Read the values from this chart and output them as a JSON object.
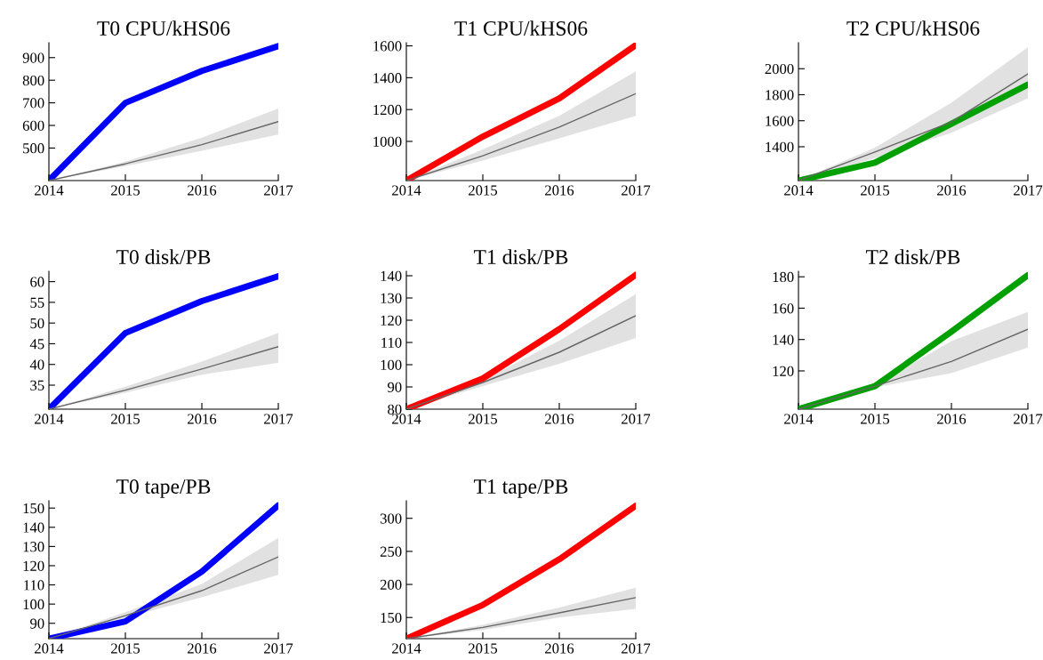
{
  "chart_data": [
    {
      "type": "line",
      "title": "T0 CPU/kHS06",
      "x": [
        2014,
        2015,
        2016,
        2017
      ],
      "xlim": [
        2014,
        2017
      ],
      "xticks": [
        2014,
        2015,
        2016,
        2017
      ],
      "ylim": [
        356,
        966
      ],
      "yticks": [
        500,
        600,
        700,
        800,
        900
      ],
      "grid": false,
      "series": [
        {
          "color": "#0000ff",
          "values": [
            356,
            700,
            841,
            951
          ]
        },
        {
          "color": "#666666",
          "values": [
            356,
            430,
            515,
            617
          ],
          "lower": [
            356,
            420,
            488,
            560
          ],
          "upper": [
            356,
            440,
            546,
            675
          ]
        }
      ]
    },
    {
      "type": "line",
      "title": "T1 CPU/kHS06",
      "x": [
        2014,
        2015,
        2016,
        2017
      ],
      "xlim": [
        2014,
        2017
      ],
      "xticks": [
        2014,
        2015,
        2016,
        2017
      ],
      "ylim": [
        754,
        1620
      ],
      "yticks": [
        1000,
        1200,
        1400,
        1600
      ],
      "grid": false,
      "series": [
        {
          "color": "#ff0000",
          "values": [
            754,
            1030,
            1270,
            1605
          ]
        },
        {
          "color": "#666666",
          "values": [
            754,
            910,
            1090,
            1300
          ],
          "lower": [
            754,
            880,
            1020,
            1160
          ],
          "upper": [
            754,
            950,
            1160,
            1440
          ]
        }
      ]
    },
    {
      "type": "line",
      "title": "T2 CPU/kHS06",
      "x": [
        2014,
        2015,
        2016,
        2017
      ],
      "xlim": [
        2014,
        2017
      ],
      "xticks": [
        2014,
        2015,
        2016,
        2017
      ],
      "ylim": [
        1140,
        2200
      ],
      "yticks": [
        1400,
        1600,
        1800,
        2000
      ],
      "grid": false,
      "series": [
        {
          "color": "#00a000",
          "values": [
            1140,
            1278,
            1577,
            1878
          ]
        },
        {
          "color": "#666666",
          "values": [
            1140,
            1360,
            1590,
            1960
          ],
          "lower": [
            1140,
            1313,
            1508,
            1772
          ],
          "upper": [
            1140,
            1393,
            1738,
            2165
          ]
        }
      ]
    },
    {
      "type": "line",
      "title": "T0 disk/PB",
      "x": [
        2014,
        2015,
        2016,
        2017
      ],
      "xlim": [
        2014,
        2017
      ],
      "xticks": [
        2014,
        2015,
        2016,
        2017
      ],
      "ylim": [
        29.2,
        62.5
      ],
      "yticks": [
        35,
        40,
        45,
        50,
        55,
        60
      ],
      "grid": false,
      "series": [
        {
          "color": "#0000ff",
          "values": [
            29.2,
            47.6,
            55.3,
            61.3
          ]
        },
        {
          "color": "#666666",
          "values": [
            29.2,
            33.8,
            38.9,
            44.3
          ],
          "lower": [
            29.2,
            33.2,
            37.5,
            40.4
          ],
          "upper": [
            29.2,
            34.6,
            40.7,
            47.6
          ]
        }
      ]
    },
    {
      "type": "line",
      "title": "T1 disk/PB",
      "x": [
        2014,
        2015,
        2016,
        2017
      ],
      "xlim": [
        2014,
        2017
      ],
      "xticks": [
        2014,
        2015,
        2016,
        2017
      ],
      "ylim": [
        80,
        142
      ],
      "yticks": [
        80,
        90,
        100,
        110,
        120,
        130,
        140
      ],
      "grid": false,
      "series": [
        {
          "color": "#ff0000",
          "values": [
            80,
            93.8,
            116,
            140.4
          ]
        },
        {
          "color": "#666666",
          "values": [
            80,
            92,
            105.6,
            122
          ],
          "lower": [
            80,
            90.4,
            100.4,
            112
          ],
          "upper": [
            80,
            93.1,
            110.8,
            131.7
          ]
        }
      ]
    },
    {
      "type": "line",
      "title": "T2 disk/PB",
      "x": [
        2014,
        2015,
        2016,
        2017
      ],
      "xlim": [
        2014,
        2017
      ],
      "xticks": [
        2014,
        2015,
        2016,
        2017
      ],
      "ylim": [
        95.6,
        183.5
      ],
      "yticks": [
        120,
        140,
        160,
        180
      ],
      "grid": false,
      "series": [
        {
          "color": "#00a000",
          "values": [
            95.6,
            110.3,
            145,
            181
          ]
        },
        {
          "color": "#666666",
          "values": [
            95.6,
            110.3,
            126,
            146.5
          ],
          "lower": [
            95.6,
            109.5,
            118.5,
            134.9
          ],
          "upper": [
            95.6,
            111,
            139,
            157.5
          ]
        }
      ]
    },
    {
      "type": "line",
      "title": "T0 tape/PB",
      "x": [
        2014,
        2015,
        2016,
        2017
      ],
      "xlim": [
        2014,
        2017
      ],
      "xticks": [
        2014,
        2015,
        2016,
        2017
      ],
      "ylim": [
        82,
        153.8
      ],
      "yticks": [
        90,
        100,
        110,
        120,
        130,
        140,
        150
      ],
      "grid": false,
      "series": [
        {
          "color": "#0000ff",
          "values": [
            82,
            91,
            116.9,
            151.4
          ]
        },
        {
          "color": "#666666",
          "values": [
            82,
            94,
            107,
            124.6
          ],
          "lower": [
            82,
            93,
            103.5,
            115.2
          ],
          "upper": [
            82,
            95.8,
            110.5,
            134.5
          ]
        }
      ]
    },
    {
      "type": "line",
      "title": "T1 tape/PB",
      "x": [
        2014,
        2015,
        2016,
        2017
      ],
      "xlim": [
        2014,
        2017
      ],
      "xticks": [
        2014,
        2015,
        2016,
        2017
      ],
      "ylim": [
        118,
        326.5
      ],
      "yticks": [
        150,
        200,
        250,
        300
      ],
      "grid": false,
      "series": [
        {
          "color": "#ff0000",
          "values": [
            118,
            169,
            238,
            319
          ]
        },
        {
          "color": "#666666",
          "values": [
            118,
            135,
            157,
            180
          ],
          "lower": [
            118,
            131,
            150,
            163
          ],
          "upper": [
            118,
            139,
            165,
            195
          ]
        }
      ]
    }
  ]
}
